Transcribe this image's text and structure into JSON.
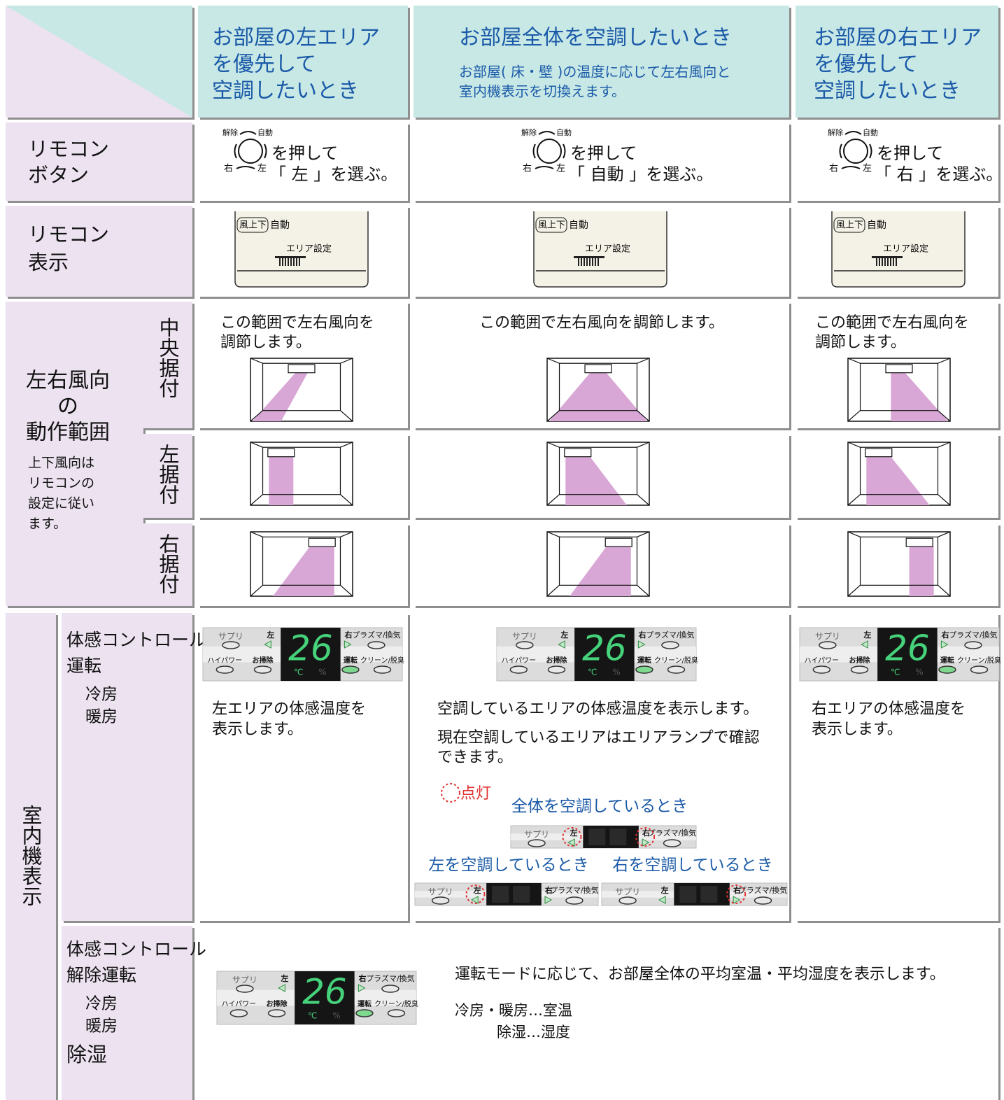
{
  "header": {
    "columns": [
      {
        "title": [
          "お部屋の左エリア",
          "を優先して",
          "空調したいとき"
        ]
      },
      {
        "title": "お部屋全体を空調したいとき",
        "note": [
          "お部屋( 床・壁 )の温度に応じて左右風向と",
          "室内機表示を切換えます。"
        ]
      },
      {
        "title": [
          "お部屋の右エリア",
          "を優先して",
          "空調したいとき"
        ]
      }
    ]
  },
  "remote_button": {
    "label": [
      "リモコン",
      "ボタン"
    ],
    "dial": {
      "release": "解除",
      "auto": "自動",
      "right": "右",
      "left": "左"
    },
    "press": "を押して",
    "cells": [
      "「 左 」を選ぶ。",
      "「 自動 」を選ぶ。",
      "「 右 」を選ぶ。"
    ]
  },
  "remote_display": {
    "label": [
      "リモコン",
      "表示"
    ],
    "screen": {
      "mode": "風上下",
      "auto": "自動",
      "area": "エリア設定"
    }
  },
  "airflow": {
    "label": [
      "左右風向",
      "の",
      "動作範囲"
    ],
    "note": [
      "上下風向は",
      "リモコンの",
      "設定に従い",
      "ます。"
    ],
    "installs": [
      "中央据付",
      "左据付",
      "右据付"
    ],
    "texts": [
      [
        "この範囲で左右風向を",
        "調節します。"
      ],
      [
        "この範囲で左右風向を調節します。"
      ],
      [
        "この範囲で左右風向を",
        "調節します。"
      ]
    ]
  },
  "indoor": {
    "label": "室内機表示",
    "panel": {
      "supply": "サプリ",
      "left": "左",
      "temp": "26",
      "right": "右",
      "plasma": "プラズマ/換気",
      "hipower": "ハイパワー",
      "clean": "お掃除",
      "run": "運転",
      "deodor": "クリーン/脱臭",
      "celsius": "℃",
      "percent": "%"
    },
    "feel": {
      "label": [
        "体感コントロール",
        "運転"
      ],
      "modes": [
        "冷房",
        "暖房"
      ],
      "cells": [
        [
          "左エリアの体感温度を",
          "表示します。"
        ],
        [
          "空調しているエリアの体感温度を表示します。"
        ],
        [
          "右エリアの体感温度を",
          "表示します。"
        ]
      ],
      "center_extra": [
        "現在空調しているエリアはエリアランプで確認",
        "できます。"
      ],
      "lit": "点灯",
      "whole": "全体を空調しているとき",
      "left_case": "左を空調しているとき",
      "right_case": "右を空調しているとき"
    },
    "feel_off": {
      "label": [
        "体感コントロール",
        "解除運転"
      ],
      "modes": [
        "冷房",
        "暖房"
      ],
      "dehumid": "除湿",
      "text": "運転モードに応じて、お部屋全体の平均室温・平均湿度を表示します。",
      "details": [
        "冷房・暖房…室温",
        "除湿…湿度"
      ]
    }
  }
}
